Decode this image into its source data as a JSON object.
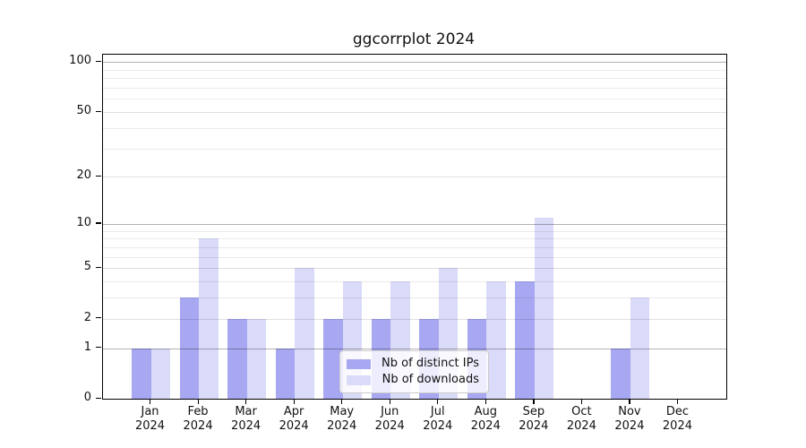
{
  "title": "ggcorrplot 2024",
  "chart_data": {
    "type": "bar",
    "title": "ggcorrplot 2024",
    "x_axis": {
      "categories": [
        "Jan",
        "Feb",
        "Mar",
        "Apr",
        "May",
        "Jun",
        "Jul",
        "Aug",
        "Sep",
        "Oct",
        "Nov",
        "Dec"
      ],
      "year_label": "2024"
    },
    "series": [
      {
        "name": "Nb of distinct IPs",
        "color": "#a7a7f2",
        "values": [
          1,
          3,
          2,
          1,
          2,
          2,
          2,
          2,
          4,
          0,
          1,
          0
        ]
      },
      {
        "name": "Nb of downloads",
        "color": "#dadaf9",
        "values": [
          1,
          8,
          2,
          5,
          4,
          4,
          5,
          4,
          11,
          0,
          3,
          0
        ]
      }
    ],
    "y_axis": {
      "scale": "log1p",
      "labeled_ticks": [
        0,
        1,
        2,
        5,
        10,
        20,
        50,
        100
      ],
      "major_gridlines": [
        1,
        10,
        100
      ],
      "medium_gridlines": [
        2,
        5,
        20,
        50
      ],
      "minor_gridlines": [
        3,
        4,
        6,
        7,
        8,
        9,
        30,
        40,
        60,
        70,
        80,
        90
      ],
      "ylim": [
        0,
        111
      ]
    },
    "legend": {
      "position": "lower-center-inside"
    },
    "grid": true
  }
}
